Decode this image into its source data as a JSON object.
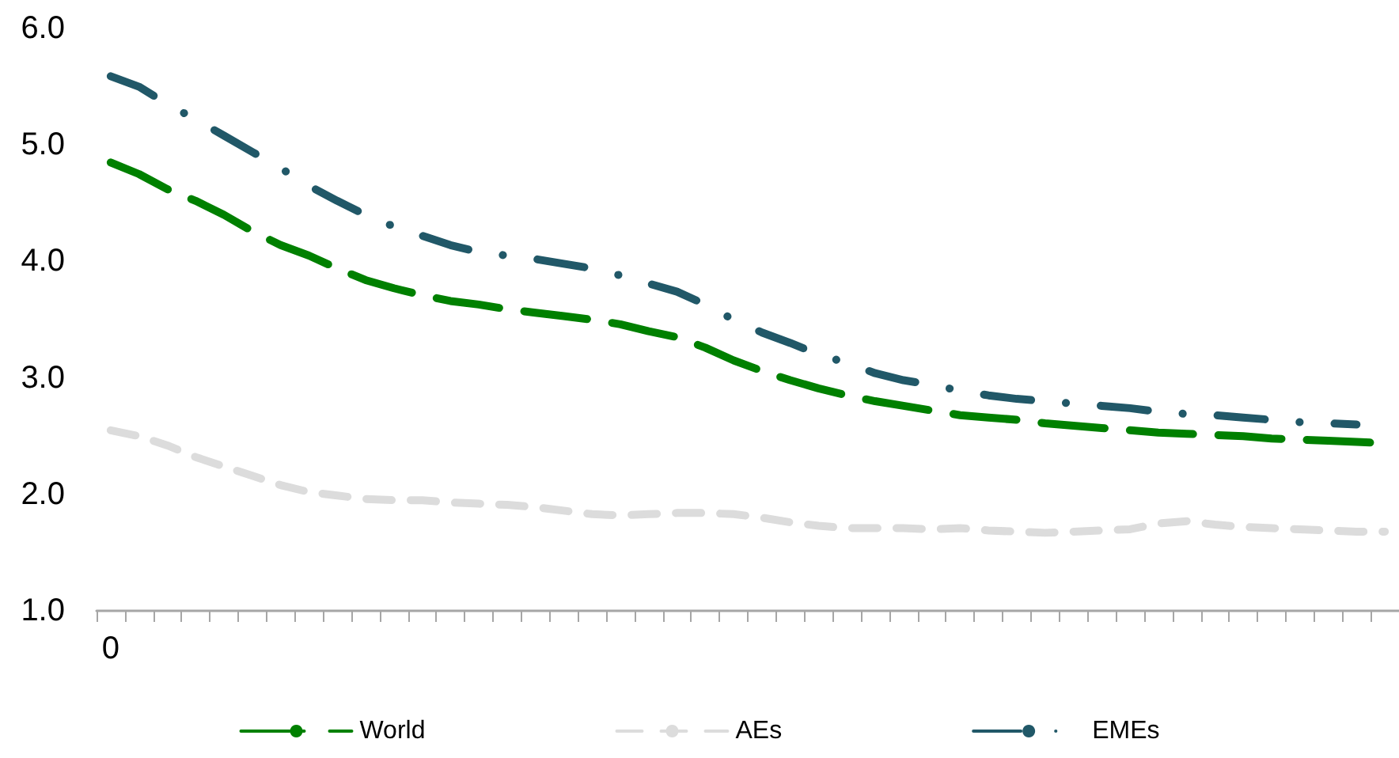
{
  "chart_data": {
    "type": "line",
    "categories": [
      "0",
      null,
      null,
      null,
      null,
      null,
      null,
      null,
      null,
      null,
      null,
      null,
      null,
      null,
      null,
      null,
      null,
      null,
      null,
      null,
      null,
      null,
      null,
      null,
      null,
      null,
      null,
      null,
      null,
      null,
      null,
      null,
      null,
      null,
      null,
      null,
      null,
      null,
      null,
      null,
      null,
      null,
      null,
      null,
      null,
      null
    ],
    "series": [
      {
        "name": "World",
        "color": "#008000",
        "line_style": "dashed",
        "values": [
          4.85,
          4.75,
          4.62,
          4.52,
          4.4,
          4.26,
          4.14,
          4.05,
          3.94,
          3.84,
          3.77,
          3.71,
          3.66,
          3.63,
          3.59,
          3.56,
          3.53,
          3.5,
          3.46,
          3.4,
          3.35,
          3.26,
          3.15,
          3.06,
          2.98,
          2.91,
          2.85,
          2.8,
          2.76,
          2.72,
          2.68,
          2.66,
          2.64,
          2.61,
          2.59,
          2.57,
          2.55,
          2.53,
          2.52,
          2.51,
          2.5,
          2.48,
          2.47,
          2.46,
          2.45,
          2.44
        ]
      },
      {
        "name": "AEs",
        "color": "#dcdcdc",
        "line_style": "dashed",
        "values": [
          2.55,
          2.5,
          2.42,
          2.32,
          2.24,
          2.16,
          2.08,
          2.02,
          1.99,
          1.96,
          1.95,
          1.95,
          1.93,
          1.92,
          1.91,
          1.89,
          1.86,
          1.83,
          1.82,
          1.83,
          1.84,
          1.84,
          1.83,
          1.8,
          1.76,
          1.73,
          1.71,
          1.71,
          1.71,
          1.7,
          1.71,
          1.69,
          1.68,
          1.67,
          1.68,
          1.69,
          1.7,
          1.75,
          1.77,
          1.74,
          1.72,
          1.71,
          1.7,
          1.69,
          1.68,
          1.68
        ]
      },
      {
        "name": "EMEs",
        "color": "#215868",
        "line_style": "dashed",
        "values": [
          5.59,
          5.5,
          5.35,
          5.22,
          5.08,
          4.94,
          4.8,
          4.65,
          4.52,
          4.4,
          4.3,
          4.22,
          4.14,
          4.08,
          4.05,
          4.02,
          3.98,
          3.94,
          3.88,
          3.81,
          3.74,
          3.63,
          3.5,
          3.39,
          3.3,
          3.2,
          3.13,
          3.04,
          2.98,
          2.94,
          2.89,
          2.85,
          2.82,
          2.8,
          2.78,
          2.76,
          2.74,
          2.71,
          2.69,
          2.68,
          2.66,
          2.64,
          2.62,
          2.61,
          2.6,
          null
        ]
      }
    ],
    "ylim": [
      1,
      6
    ],
    "yticks": [
      {
        "value": 1,
        "label": "1.0"
      },
      {
        "value": 2,
        "label": "2.0"
      },
      {
        "value": 3,
        "label": "3.0"
      },
      {
        "value": 4,
        "label": "4.0"
      },
      {
        "value": 5,
        "label": "5.0"
      },
      {
        "value": 6,
        "label": "6.0"
      }
    ],
    "grid": false,
    "legend": "bottom",
    "marker": "none"
  }
}
